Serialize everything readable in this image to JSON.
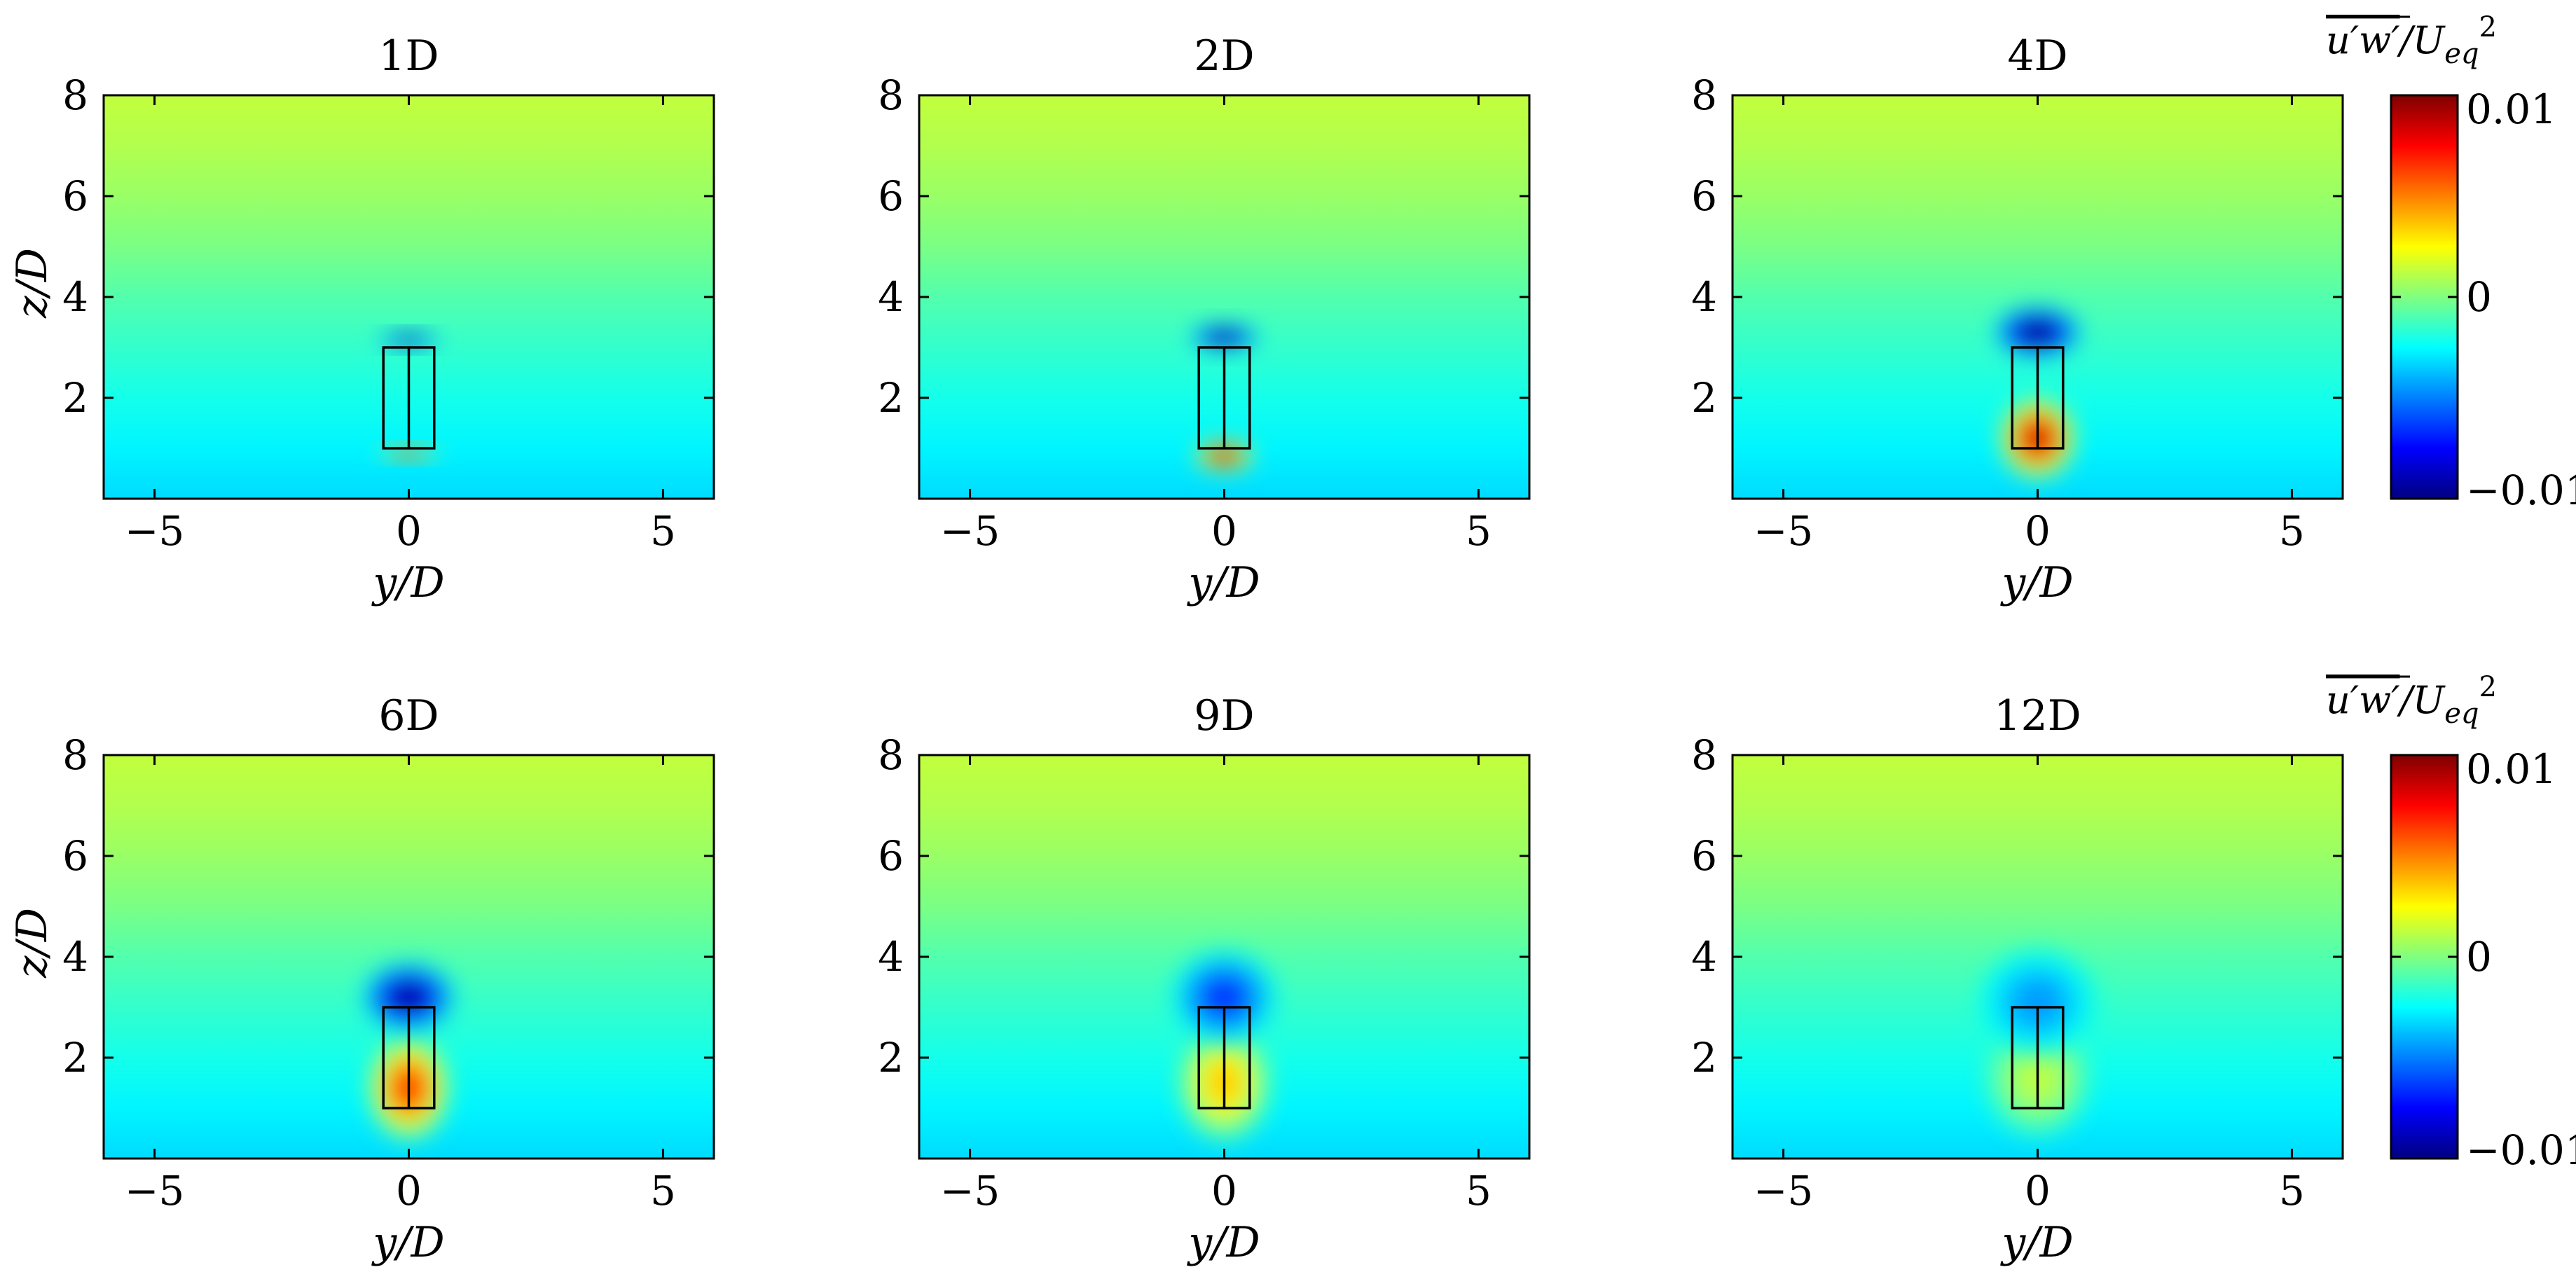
{
  "chart_data": {
    "type": "heatmap",
    "layout": "2x3 small multiples with colorbar per row",
    "colormap": "jet",
    "colorbar": {
      "label": "u'w'/Ueq^2",
      "label_parts": {
        "num": "u′w′",
        "slash": "/",
        "base": "U",
        "sub": "eq",
        "sup": "2"
      },
      "range": [
        -0.01,
        0.01
      ],
      "ticks": [
        0.01,
        0,
        -0.01
      ],
      "tick_labels": [
        "0.01",
        "0",
        "−0.01"
      ]
    },
    "xlabel": "y/D",
    "ylabel": "z/D",
    "xlim": [
      -6,
      6
    ],
    "ylim": [
      0,
      8
    ],
    "xticks": [
      -5,
      0,
      5
    ],
    "xtick_labels": [
      "−5",
      "0",
      "5"
    ],
    "yticks": [
      2,
      4,
      6,
      8
    ],
    "ytick_labels": [
      "2",
      "4",
      "6",
      "8"
    ],
    "background_value_profile": [
      {
        "z": 0.0,
        "value": -0.0032
      },
      {
        "z": 1.0,
        "value": -0.0027
      },
      {
        "z": 2.0,
        "value": -0.0021
      },
      {
        "z": 3.0,
        "value": -0.0015
      },
      {
        "z": 4.0,
        "value": -0.0009
      },
      {
        "z": 5.0,
        "value": -0.0001
      },
      {
        "z": 6.0,
        "value": 0.0005
      },
      {
        "z": 7.0,
        "value": 0.001
      },
      {
        "z": 8.0,
        "value": 0.0013
      }
    ],
    "turbine_frame": {
      "y": [
        -0.5,
        0.5
      ],
      "z": [
        1,
        3
      ],
      "tower_y": 0
    },
    "panels": [
      {
        "title": "1D",
        "neg_lobe": {
          "y": 0,
          "z": 3.15,
          "ry": 0.55,
          "rz": 0.12,
          "min": -0.0105
        },
        "pos_lobe": {
          "y": 0,
          "z": 0.9,
          "ry": 0.5,
          "rz": 0.1,
          "max": 0.009
        }
      },
      {
        "title": "2D",
        "neg_lobe": {
          "y": 0,
          "z": 3.2,
          "ry": 0.6,
          "rz": 0.22,
          "min": -0.0105
        },
        "pos_lobe": {
          "y": 0,
          "z": 0.85,
          "ry": 0.5,
          "rz": 0.25,
          "max": 0.0095
        }
      },
      {
        "title": "4D",
        "neg_lobe": {
          "y": 0,
          "z": 3.3,
          "ry": 0.75,
          "rz": 0.45,
          "min": -0.0105
        },
        "pos_lobe": {
          "y": 0,
          "z": 1.2,
          "ry": 0.65,
          "rz": 0.7,
          "max": 0.0085
        }
      },
      {
        "title": "6D",
        "neg_lobe": {
          "y": 0,
          "z": 3.2,
          "ry": 0.8,
          "rz": 0.6,
          "min": -0.0095
        },
        "pos_lobe": {
          "y": 0,
          "z": 1.4,
          "ry": 0.7,
          "rz": 0.9,
          "max": 0.0065
        }
      },
      {
        "title": "9D",
        "neg_lobe": {
          "y": 0,
          "z": 3.2,
          "ry": 0.9,
          "rz": 0.8,
          "min": -0.0065
        },
        "pos_lobe": {
          "y": 0,
          "z": 1.5,
          "ry": 0.8,
          "rz": 1.0,
          "max": 0.0035
        }
      },
      {
        "title": "12D",
        "neg_lobe": {
          "y": 0,
          "z": 3.1,
          "ry": 1.0,
          "rz": 0.9,
          "min": -0.0045
        },
        "pos_lobe": {
          "y": 0,
          "z": 1.6,
          "ry": 0.9,
          "rz": 1.0,
          "max": 0.0012
        }
      }
    ]
  }
}
